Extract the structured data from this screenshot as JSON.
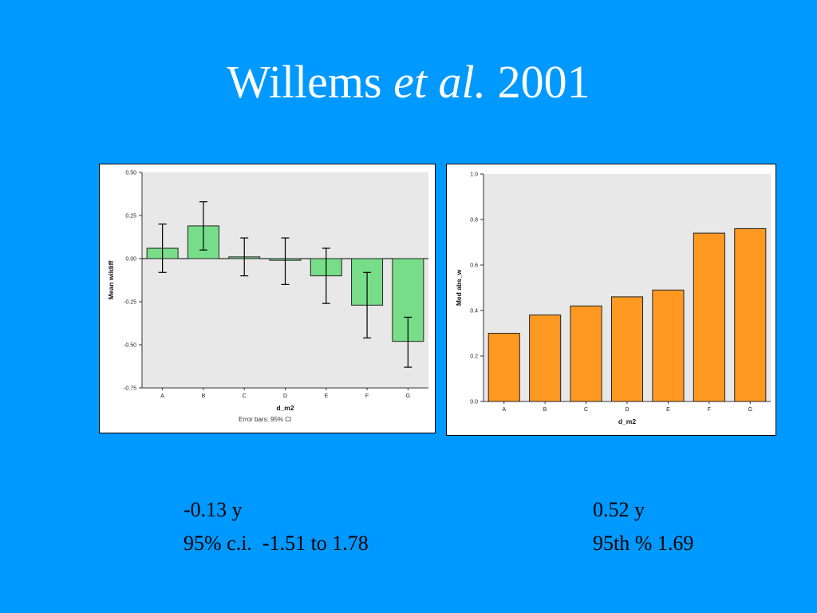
{
  "slide": {
    "title_main": "Willems ",
    "title_italic": "et al.",
    "title_year": " 2001"
  },
  "captions": {
    "left_line1": "-0.13 y",
    "left_line2": "95% c.i.  -1.51 to 1.78",
    "right_line1": "0.52 y",
    "right_line2": "95th % 1.69"
  },
  "chart_data": [
    {
      "type": "bar",
      "categories": [
        "A",
        "B",
        "C",
        "D",
        "E",
        "F",
        "G"
      ],
      "values": [
        0.06,
        0.19,
        0.01,
        -0.01,
        -0.1,
        -0.27,
        -0.48
      ],
      "ci_lower": [
        -0.08,
        0.05,
        -0.1,
        -0.15,
        -0.26,
        -0.46,
        -0.63
      ],
      "ci_upper": [
        0.2,
        0.33,
        0.12,
        0.12,
        0.06,
        -0.08,
        -0.34
      ],
      "yticks": [
        "0.50",
        "0.25",
        "0.00",
        "-0.25",
        "-0.50",
        "-0.75"
      ],
      "ytick_values": [
        0.5,
        0.25,
        0.0,
        -0.25,
        -0.5,
        -0.75
      ],
      "ylim": [
        -0.75,
        0.5
      ],
      "xlabel": "d_m2",
      "ylabel": "Mean wildiff",
      "note": "Error bars: 95% CI",
      "bar_color": "#77dd88",
      "plot_bg": "#e8e8e8"
    },
    {
      "type": "bar",
      "categories": [
        "A",
        "B",
        "C",
        "D",
        "E",
        "F",
        "G"
      ],
      "values": [
        0.3,
        0.38,
        0.42,
        0.46,
        0.49,
        0.74,
        0.76
      ],
      "yticks": [
        "1.0",
        "0.8",
        "0.6",
        "0.4",
        "0.2",
        "0.0"
      ],
      "ytick_values": [
        1.0,
        0.8,
        0.6,
        0.4,
        0.2,
        0.0
      ],
      "ylim": [
        0.0,
        1.0
      ],
      "xlabel": "d_m2",
      "ylabel": "Med abs_w",
      "bar_color": "#ff9922",
      "plot_bg": "#e8e8e8"
    }
  ]
}
